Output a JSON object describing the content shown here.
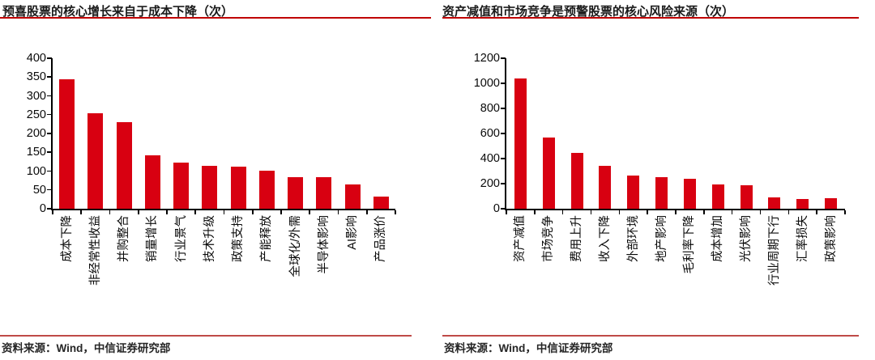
{
  "page": {
    "background": "#ffffff"
  },
  "colors": {
    "bar_red": "#d80011",
    "title_rule_red": "#c00000",
    "source_rule_red": "#bf4a47",
    "axis_black": "#000000"
  },
  "footer": {
    "left_source": "资料来源：Wind，中信证券研究部",
    "right_source": "资料来源：Wind，中信证券研究部"
  },
  "chart_data": [
    {
      "type": "bar",
      "title": "预喜股票的核心增长来自于成本下降（次）",
      "categories": [
        "成本下降",
        "非经常性收益",
        "并购整合",
        "销量增长",
        "行业景气",
        "技术升级",
        "政策支持",
        "产能释放",
        "全球化/外需",
        "半导体影响",
        "AI影响",
        "产品涨价"
      ],
      "values": [
        345,
        253,
        230,
        143,
        122,
        115,
        112,
        101,
        84,
        83,
        64,
        33
      ],
      "xlabel": "",
      "ylabel": "",
      "ylim": [
        0,
        400
      ],
      "ytick_step": 50,
      "grid": false,
      "legend": "none",
      "bar_orientation": "vertical",
      "x_label_rotation_deg": -90
    },
    {
      "type": "bar",
      "title": "资产减值和市场竞争是预警股票的核心风险来源（次）",
      "categories": [
        "资产减值",
        "市场竞争",
        "费用上升",
        "收入下降",
        "外部环境",
        "地产影响",
        "毛利率下降",
        "成本增加",
        "光伏影响",
        "行业周期下行",
        "汇率损失",
        "政策影响"
      ],
      "values": [
        1040,
        565,
        445,
        340,
        265,
        250,
        240,
        195,
        190,
        90,
        80,
        85
      ],
      "xlabel": "",
      "ylabel": "",
      "ylim": [
        0,
        1200
      ],
      "ytick_step": 200,
      "grid": false,
      "legend": "none",
      "bar_orientation": "vertical",
      "x_label_rotation_deg": -90
    }
  ]
}
